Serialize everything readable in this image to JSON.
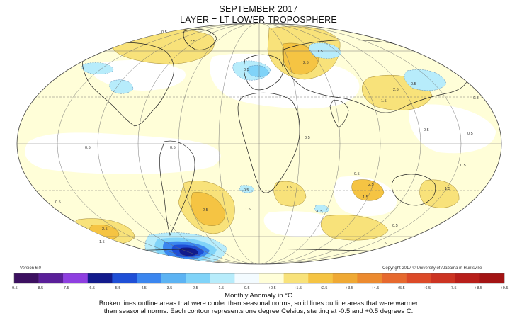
{
  "header": {
    "title": "SEPTEMBER 2017",
    "subtitle": "LAYER = LT LOWER TROPOSPHERE"
  },
  "footer": {
    "version": "Version 6.0",
    "copyright": "Copyright 2017 © University of Alabama in Huntsville"
  },
  "legend": {
    "title": "Monthly Anomaly in °C",
    "ticks": [
      "-9.5",
      "-8.5",
      "-7.5",
      "-6.5",
      "-5.5",
      "-4.5",
      "-3.5",
      "-2.5",
      "-1.5",
      "-0.5",
      "+0.5",
      "+1.5",
      "+2.5",
      "+3.5",
      "+4.5",
      "+5.5",
      "+6.5",
      "+7.5",
      "+8.5",
      "+9.5"
    ],
    "colors": [
      "#3c1060",
      "#5a1f99",
      "#8e3fe0",
      "#131b8c",
      "#1f4fd6",
      "#3b86ef",
      "#5cb3f3",
      "#80d3f8",
      "#b7ecfb",
      "#f3fbff",
      "#fffed8",
      "#f8e27a",
      "#f5c443",
      "#efa934",
      "#ec8a2f",
      "#e6692e",
      "#dc4a28",
      "#cc3422",
      "#b81f1a",
      "#a31414"
    ]
  },
  "caption": {
    "line1": "Broken lines outline areas that were cooler than seasonal norms; solid lines outline areas that were warmer",
    "line2": "than seasonal norms. Each contour represents one degree Celsius, starting at -0.5 and +0.5 degrees C."
  },
  "map": {
    "colors": {
      "ocean_background": "#fffed8",
      "near_zero": "#ffffff",
      "warm_1": "#f8e27a",
      "warm_2": "#f5c443",
      "cool_1": "#b7ecfb",
      "cool_2": "#80d3f8",
      "cool_3": "#3b86ef",
      "cool_4": "#1f4fd6",
      "cool_5": "#131b8c"
    },
    "contour_labels": [
      "0.5",
      "0.5",
      "0.5",
      "0.5",
      "0.5",
      "0.5",
      "0.5",
      "0.5",
      "0.5",
      "0.5",
      "0.5",
      "0.5",
      "0.5",
      "1.5",
      "1.5",
      "1.5",
      "1.5",
      "1.5",
      "1.5",
      "1.5",
      "1.5",
      "2.5",
      "2.5",
      "2.5",
      "2.5",
      "2.5",
      "2.5",
      "-0.5",
      "-0.5"
    ]
  }
}
